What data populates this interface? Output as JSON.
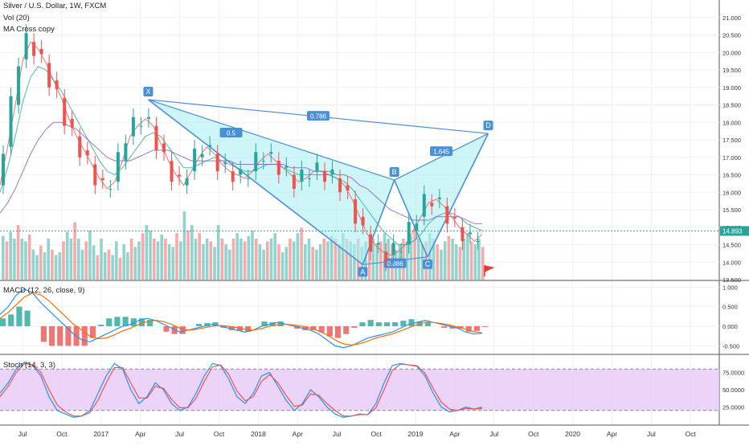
{
  "legend": {
    "symbol": "Silver / U.S. Dollar, 1W, FXCM",
    "volume": "Vol (20)",
    "ma": "MA Cross copy",
    "macd": "MACD (12, 26, close, 9)",
    "stoch": "Stoch (14, 3, 3)"
  },
  "colors": {
    "up": "#26a69a",
    "down": "#ef5350",
    "volUp": "#80cbc4",
    "volDown": "#f59b9b",
    "pattern": "#4a90d9",
    "patternFill": "#aef0f4",
    "stochBand": "#e6c9f5",
    "macd": "#2196f3",
    "signal": "#ff6d00",
    "k": "#2196f3",
    "d": "#ef5350",
    "lastPrice": "#26a69a"
  },
  "icons": [
    "flag-icon"
  ],
  "chart_data": [
    {
      "type": "line",
      "pane": "price",
      "ylim": [
        13.5,
        21.5
      ],
      "yticks": [
        "21.000",
        "20.500",
        "20.000",
        "19.500",
        "19.000",
        "18.500",
        "18.000",
        "17.500",
        "17.000",
        "16.500",
        "16.000",
        "15.500",
        "15.000",
        "14.500",
        "14.000",
        "13.500"
      ],
      "last_price": "14.893",
      "xticks": [
        "Jul",
        "Oct",
        "2017",
        "Apr",
        "Jul",
        "Oct",
        "2018",
        "Apr",
        "Jul",
        "Oct",
        "2019",
        "Apr",
        "Jul",
        "Oct",
        "2020",
        "Apr",
        "Jul",
        "Oct"
      ],
      "series": [
        {
          "values": [
            16.2,
            17.3,
            18.5,
            19.8,
            20.3,
            20.1,
            19.7,
            19.2,
            18.7,
            18.1,
            17.6,
            17.2,
            16.8,
            16.4,
            16.1,
            16.3,
            16.9,
            17.6,
            17.9,
            18.1,
            17.9,
            17.4,
            16.9,
            16.5,
            16.2,
            16.6,
            17.0,
            17.3,
            17.1,
            16.8,
            16.6,
            16.5,
            16.4,
            16.6,
            16.9,
            17.1,
            16.9,
            16.7,
            16.5,
            16.3,
            16.4,
            16.6,
            16.6,
            16.5,
            16.4,
            16.2,
            15.8,
            15.3,
            14.8,
            14.5,
            14.3,
            14.2,
            14.3,
            14.5,
            14.9,
            15.3,
            15.7,
            15.8,
            15.6,
            15.3,
            15.0,
            14.8,
            14.6,
            14.8
          ]
        },
        {
          "values": [
            16.0,
            16.7,
            17.6,
            18.6,
            19.3,
            19.6,
            19.5,
            19.2,
            18.9,
            18.5,
            18.1,
            17.7,
            17.3,
            16.9,
            16.6,
            16.5,
            16.7,
            17.0,
            17.3,
            17.6,
            17.7,
            17.6,
            17.3,
            17.0,
            16.7,
            16.7,
            16.8,
            16.9,
            17.0,
            16.9,
            16.8,
            16.7,
            16.6,
            16.6,
            16.7,
            16.8,
            16.8,
            16.7,
            16.6,
            16.5,
            16.5,
            16.5,
            16.5,
            16.5,
            16.4,
            16.3,
            16.1,
            15.8,
            15.5,
            15.2,
            14.9,
            14.7,
            14.5,
            14.5,
            14.6,
            14.8,
            15.1,
            15.3,
            15.4,
            15.4,
            15.3,
            15.1,
            15.0,
            14.9
          ]
        },
        {
          "values": [
            15.4,
            15.7,
            16.1,
            16.6,
            17.1,
            17.5,
            17.8,
            18.0,
            18.0,
            17.9,
            17.8,
            17.6,
            17.4,
            17.2,
            17.0,
            16.9,
            16.9,
            16.9,
            17.0,
            17.1,
            17.2,
            17.2,
            17.2,
            17.1,
            17.0,
            16.9,
            16.9,
            16.9,
            16.9,
            16.9,
            16.9,
            16.8,
            16.8,
            16.8,
            16.8,
            16.8,
            16.8,
            16.8,
            16.7,
            16.7,
            16.7,
            16.6,
            16.6,
            16.6,
            16.5,
            16.5,
            16.4,
            16.2,
            16.1,
            15.9,
            15.7,
            15.5,
            15.4,
            15.3,
            15.2,
            15.2,
            15.2,
            15.3,
            15.3,
            15.3,
            15.3,
            15.2,
            15.1,
            15.1
          ]
        }
      ],
      "pattern": {
        "points": [
          {
            "label": "X",
            "t": 0.315,
            "price": 18.65
          },
          {
            "label": "A",
            "t": 0.845,
            "price": 13.93
          },
          {
            "label": "B",
            "t": 0.923,
            "price": 16.35
          },
          {
            "label": "C",
            "t": 1.005,
            "price": 14.15
          },
          {
            "label": "D",
            "t": 1.155,
            "price": 17.68
          }
        ],
        "ratios": [
          "0.786",
          "0.5",
          "1.645",
          "0.886"
        ]
      },
      "volume": [
        0.32,
        0.28,
        0.35,
        0.3,
        0.4,
        0.3,
        0.28,
        0.33,
        0.22,
        0.18,
        0.25,
        0.2,
        0.3,
        0.22,
        0.18,
        0.2,
        0.28,
        0.35,
        0.3,
        0.42,
        0.3,
        0.22,
        0.28,
        0.36,
        0.25,
        0.18,
        0.3,
        0.2,
        0.22,
        0.18,
        0.28,
        0.16,
        0.26,
        0.2,
        0.3,
        0.24,
        0.28,
        0.34,
        0.4,
        0.36,
        0.3,
        0.28,
        0.33,
        0.3,
        0.26,
        0.24,
        0.34,
        0.28,
        0.5,
        0.36,
        0.4,
        0.3,
        0.34,
        0.26,
        0.3,
        0.28,
        0.24,
        0.4,
        0.3,
        0.26,
        0.22,
        0.3,
        0.34,
        0.3,
        0.28,
        0.32,
        0.36,
        0.3,
        0.26,
        0.22,
        0.28,
        0.3,
        0.34,
        0.26,
        0.2,
        0.24,
        0.3,
        0.28,
        0.34,
        0.38,
        0.26,
        0.3,
        0.24,
        0.22,
        0.26,
        0.3,
        0.28,
        0.32,
        0.3,
        0.26,
        0.34,
        0.3,
        0.28,
        0.26,
        0.3,
        0.24,
        0.28,
        0.32,
        0.3,
        0.26,
        0.28,
        0.34,
        0.3,
        0.26,
        0.22,
        0.26,
        0.3,
        0.28,
        0.32,
        0.38,
        0.3,
        0.26,
        0.28,
        0.34,
        0.3,
        0.26,
        0.22,
        0.28,
        0.32,
        0.3,
        0.26,
        0.24,
        0.3,
        0.34,
        0.28,
        0.26,
        0.3,
        0.24
      ]
    },
    {
      "type": "line",
      "pane": "macd",
      "ylim": [
        -0.7,
        1.15
      ],
      "yticks": [
        "1.000",
        "0.500",
        "0.000",
        "-0.500"
      ],
      "series": [
        {
          "name": "MACD",
          "values": [
            0.3,
            0.5,
            0.8,
            0.95,
            0.85,
            0.6,
            0.4,
            0.2,
            0.0,
            -0.2,
            -0.35,
            -0.4,
            -0.3,
            -0.2,
            -0.1,
            0.0,
            0.05,
            0.15,
            0.2,
            0.15,
            0.05,
            -0.05,
            -0.15,
            -0.1,
            -0.05,
            0.0,
            0.05,
            0.0,
            -0.05,
            -0.1,
            -0.15,
            -0.1,
            0.0,
            0.05,
            0.1,
            0.05,
            0.0,
            -0.05,
            -0.1,
            -0.2,
            -0.35,
            -0.5,
            -0.55,
            -0.5,
            -0.4,
            -0.3,
            -0.25,
            -0.2,
            -0.15,
            -0.05,
            0.05,
            0.1,
            0.15,
            0.1,
            0.05,
            0.0,
            -0.05,
            -0.15,
            -0.2,
            -0.18
          ]
        },
        {
          "name": "Signal",
          "values": [
            0.2,
            0.35,
            0.55,
            0.75,
            0.85,
            0.8,
            0.65,
            0.45,
            0.25,
            0.05,
            -0.1,
            -0.25,
            -0.32,
            -0.3,
            -0.22,
            -0.12,
            -0.05,
            0.05,
            0.12,
            0.15,
            0.12,
            0.05,
            -0.05,
            -0.1,
            -0.08,
            -0.04,
            0.0,
            0.02,
            0.0,
            -0.04,
            -0.08,
            -0.1,
            -0.06,
            0.0,
            0.04,
            0.05,
            0.03,
            0.0,
            -0.05,
            -0.12,
            -0.22,
            -0.35,
            -0.45,
            -0.48,
            -0.45,
            -0.38,
            -0.3,
            -0.25,
            -0.2,
            -0.12,
            -0.04,
            0.04,
            0.1,
            0.1,
            0.07,
            0.03,
            -0.02,
            -0.08,
            -0.14,
            -0.17
          ]
        }
      ]
    },
    {
      "type": "line",
      "pane": "stoch",
      "ylim": [
        0,
        100
      ],
      "yticks": [
        "75.0000",
        "50.0000",
        "25.0000"
      ],
      "band": [
        20,
        80
      ],
      "series": [
        {
          "name": "%K",
          "values": [
            45,
            60,
            80,
            90,
            85,
            70,
            40,
            20,
            15,
            10,
            12,
            20,
            45,
            70,
            88,
            80,
            50,
            30,
            40,
            60,
            50,
            30,
            20,
            25,
            45,
            70,
            88,
            85,
            65,
            40,
            30,
            45,
            70,
            75,
            55,
            35,
            20,
            30,
            50,
            40,
            25,
            15,
            10,
            12,
            15,
            14,
            30,
            60,
            85,
            88,
            86,
            84,
            70,
            45,
            25,
            18,
            20,
            25,
            22,
            25
          ]
        },
        {
          "name": "%D",
          "values": [
            40,
            55,
            75,
            88,
            86,
            75,
            50,
            28,
            18,
            12,
            12,
            17,
            35,
            60,
            82,
            82,
            60,
            38,
            38,
            55,
            52,
            36,
            24,
            24,
            38,
            62,
            83,
            86,
            72,
            48,
            34,
            40,
            62,
            72,
            60,
            42,
            26,
            28,
            44,
            42,
            30,
            20,
            12,
            12,
            14,
            14,
            24,
            50,
            78,
            87,
            86,
            85,
            74,
            52,
            32,
            22,
            20,
            23,
            22,
            23
          ]
        }
      ]
    }
  ]
}
